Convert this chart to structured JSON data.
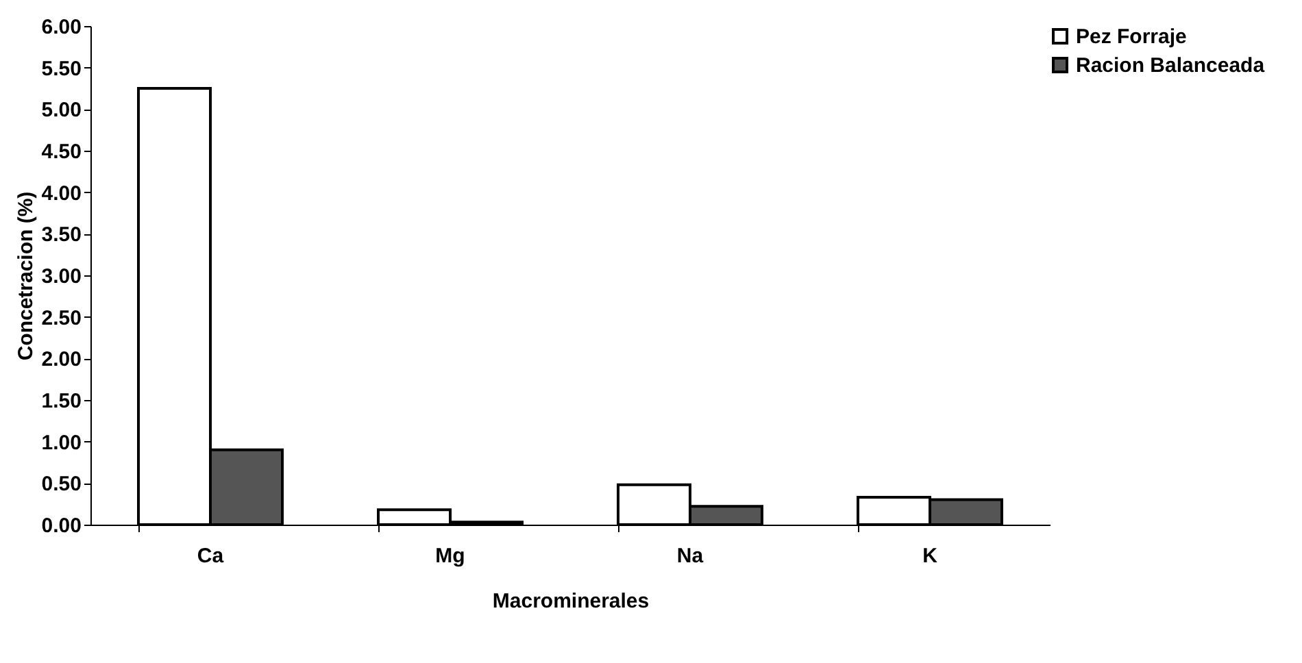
{
  "chart_data": {
    "type": "bar",
    "xlabel": "Macrominerales",
    "ylabel": "Concetracion (%)",
    "categories": [
      "Ca",
      "Mg",
      "Na",
      "K"
    ],
    "series": [
      {
        "name": "Pez Forraje",
        "color": "#ffffff",
        "values": [
          5.25,
          0.18,
          0.48,
          0.33
        ]
      },
      {
        "name": "Racion Balanceada",
        "color": "#555555",
        "values": [
          0.9,
          0.03,
          0.22,
          0.3
        ]
      }
    ],
    "ylim": [
      0,
      6
    ],
    "yticks": [
      {
        "value": 0,
        "label": "0.00"
      },
      {
        "value": 0.5,
        "label": "0.50"
      },
      {
        "value": 1,
        "label": "1.00"
      },
      {
        "value": 1.5,
        "label": "1.50"
      },
      {
        "value": 2,
        "label": "2.00"
      },
      {
        "value": 2.5,
        "label": "2.50"
      },
      {
        "value": 3,
        "label": "3.00"
      },
      {
        "value": 3.5,
        "label": "3.50"
      },
      {
        "value": 4,
        "label": "4.00"
      },
      {
        "value": 4.5,
        "label": "4.50"
      },
      {
        "value": 5,
        "label": "5.00"
      },
      {
        "value": 5.5,
        "label": "5.50"
      },
      {
        "value": 6,
        "label": "6.00"
      }
    ],
    "grid": false,
    "legend": "right"
  }
}
